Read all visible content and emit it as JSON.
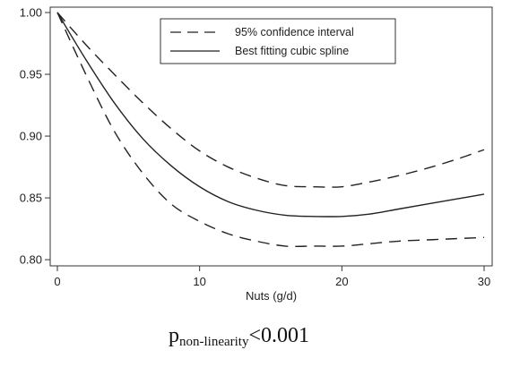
{
  "chart_data": {
    "type": "line",
    "title": "",
    "xlabel": "Nuts (g/d)",
    "ylabel": "",
    "xlim": [
      0,
      30
    ],
    "ylim": [
      0.795,
      1.0
    ],
    "xticks": [
      0,
      10,
      20,
      30
    ],
    "xtick_labels": [
      "0",
      "10",
      "20",
      "30"
    ],
    "yticks": [
      0.8,
      0.85,
      0.9,
      0.95,
      1.0
    ],
    "ytick_labels": [
      "0.80",
      "0.85",
      "0.90",
      "0.95",
      "1.00"
    ],
    "grid": false,
    "legend_position": "top-right",
    "series": [
      {
        "name": "95% confidence interval",
        "style": "dashed",
        "role": "upper",
        "x": [
          0,
          2,
          4,
          6,
          8,
          10,
          12,
          14,
          16,
          18,
          20,
          22,
          24,
          26,
          28,
          30
        ],
        "y": [
          1.0,
          0.974,
          0.95,
          0.927,
          0.906,
          0.888,
          0.875,
          0.866,
          0.86,
          0.859,
          0.859,
          0.863,
          0.868,
          0.874,
          0.881,
          0.889
        ]
      },
      {
        "name": "Best fitting cubic spline",
        "style": "solid",
        "x": [
          0,
          2,
          4,
          6,
          8,
          10,
          12,
          14,
          16,
          18,
          20,
          22,
          24,
          26,
          28,
          30
        ],
        "y": [
          1.0,
          0.962,
          0.927,
          0.898,
          0.876,
          0.859,
          0.847,
          0.84,
          0.836,
          0.835,
          0.835,
          0.837,
          0.841,
          0.845,
          0.849,
          0.853
        ]
      },
      {
        "name": "95% confidence interval",
        "style": "dashed",
        "role": "lower",
        "x": [
          0,
          2,
          4,
          6,
          8,
          10,
          12,
          14,
          16,
          18,
          20,
          22,
          24,
          26,
          28,
          30
        ],
        "y": [
          1.0,
          0.95,
          0.904,
          0.87,
          0.845,
          0.831,
          0.821,
          0.815,
          0.811,
          0.811,
          0.811,
          0.813,
          0.815,
          0.816,
          0.817,
          0.818
        ]
      }
    ],
    "legend": [
      {
        "label": "95% confidence interval",
        "style": "dashed"
      },
      {
        "label": "Best fitting cubic spline",
        "style": "solid"
      }
    ]
  },
  "annotation": {
    "p": "p",
    "subscript": "non-linearity",
    "value": "<0.001"
  }
}
